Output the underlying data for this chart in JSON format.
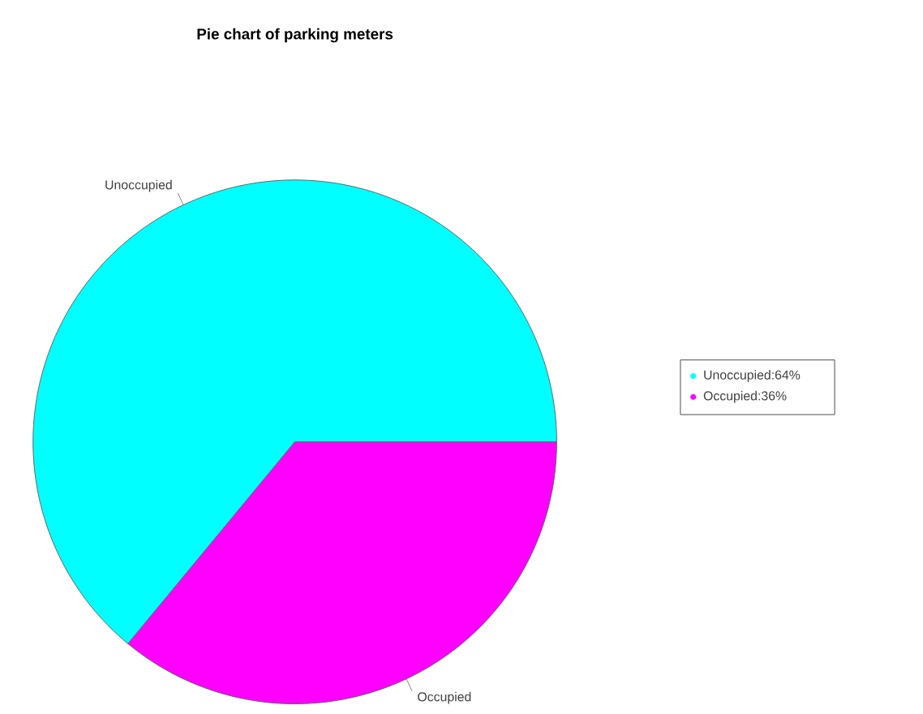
{
  "chart_data": {
    "type": "pie",
    "title": "Pie chart of parking meters",
    "categories": [
      "Unoccupied",
      "Occupied"
    ],
    "values": [
      64,
      36
    ],
    "colors": [
      "#00ffff",
      "#ff00ff"
    ],
    "annotations": [
      "Unoccupied:64%",
      "Occupied:36%"
    ]
  }
}
